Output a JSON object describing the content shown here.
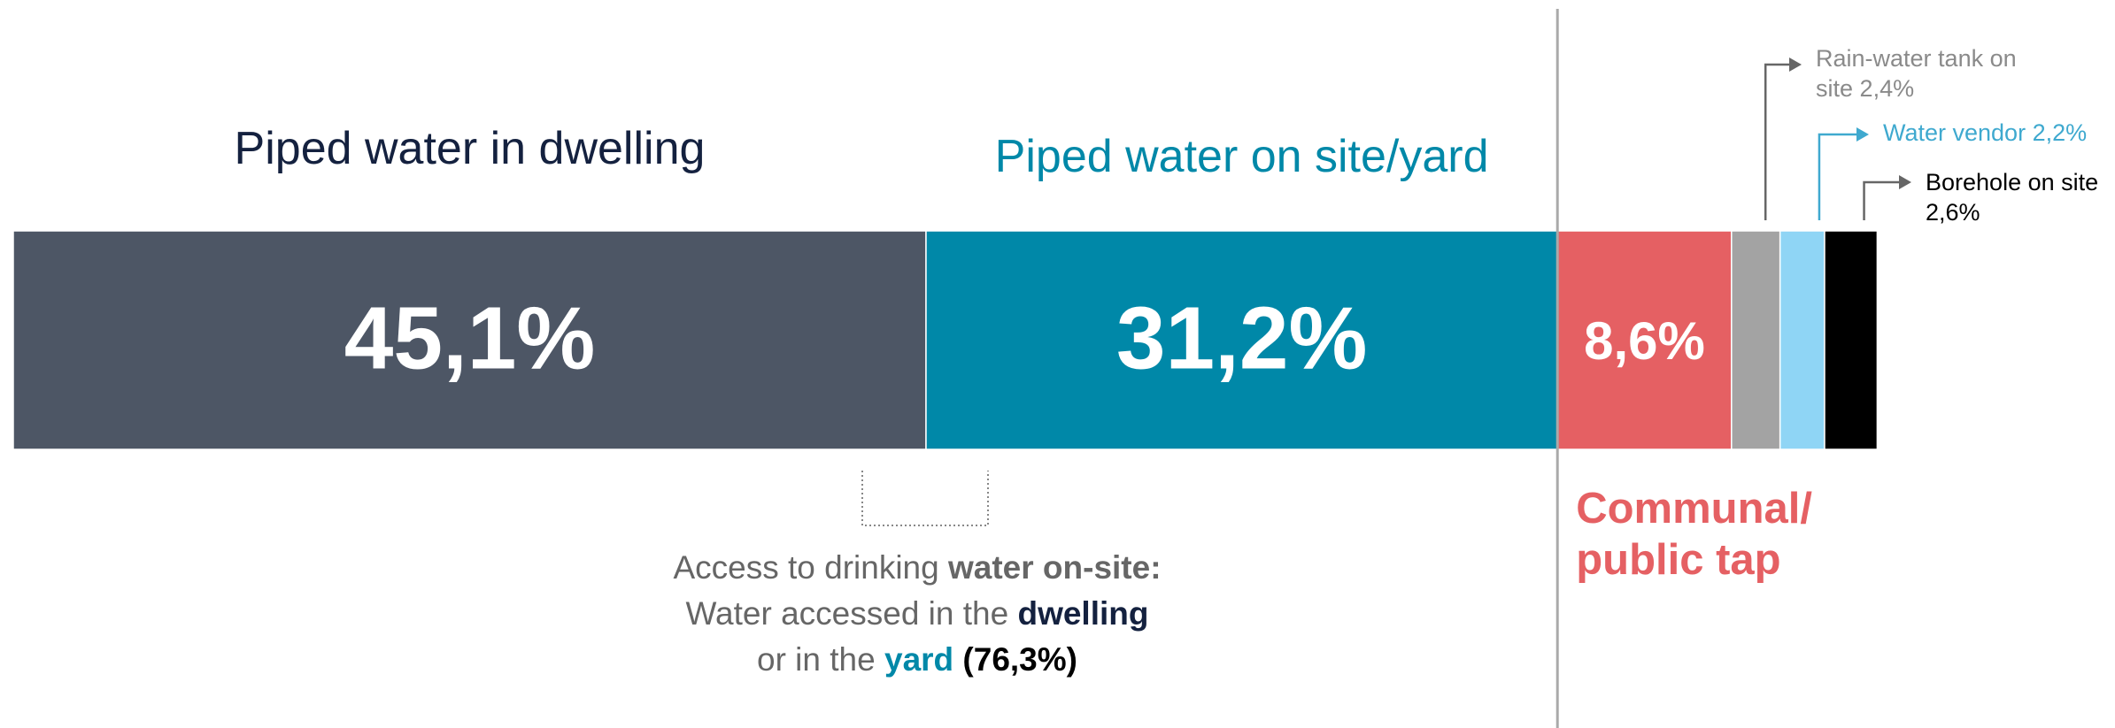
{
  "chart_data": {
    "type": "stacked-bar",
    "xlim": [
      0,
      100
    ],
    "series": [
      {
        "name": "Piped water in dwelling",
        "color": "#4d5665",
        "label_color": "#14213f",
        "values": [
          45.1
        ],
        "value_labels": [
          "45,1%"
        ]
      },
      {
        "name": "Piped water on site/yard",
        "color": "#0088a8",
        "label_color": "#0088a8",
        "values": [
          31.2
        ],
        "value_labels": [
          "31,2%"
        ]
      },
      {
        "name": "Communal/ public tap",
        "color": "#e56063",
        "label_color": "#e56063",
        "values": [
          8.6
        ],
        "value_labels": [
          "8,6%"
        ]
      },
      {
        "name": "Rain-water tank on site",
        "color": "#a3a3a3",
        "label_color": "#8a8a8a",
        "values": [
          2.4
        ],
        "value_labels": [
          "2,4%"
        ]
      },
      {
        "name": "Water vendor",
        "color": "#8fd5f5",
        "label_color": "#3fa9cf",
        "values": [
          2.2
        ],
        "value_labels": [
          "2,2%"
        ]
      },
      {
        "name": "Borehole on site",
        "color": "#000000",
        "label_color": "#000000",
        "values": [
          2.6
        ],
        "value_labels": [
          "2,6%"
        ]
      }
    ],
    "annotation": {
      "lines": [
        [
          {
            "text": "Access to drinking "
          },
          {
            "text": "water on-site:",
            "bold": true
          }
        ],
        [
          {
            "text": "Water accessed in the "
          },
          {
            "text": "dwelling",
            "bold": true,
            "color": "#14213f"
          }
        ],
        [
          {
            "text": "or in the "
          },
          {
            "text": "yard",
            "bold": true,
            "color": "#0088a8"
          },
          {
            "text": " (76,3%)",
            "bold": true,
            "color": "#000000"
          }
        ]
      ]
    }
  }
}
